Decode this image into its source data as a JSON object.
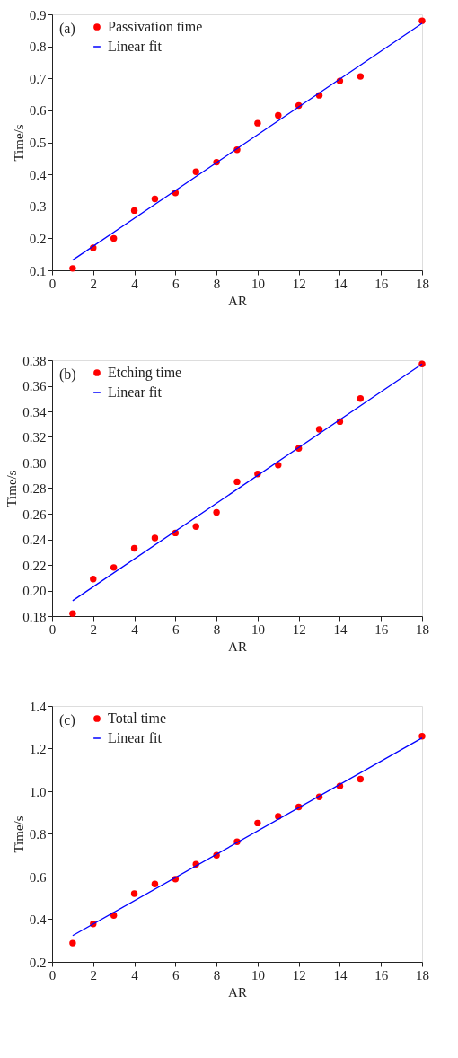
{
  "chart_data": [
    {
      "type": "scatter",
      "xlabel": "AR",
      "ylabel": "Time/s",
      "annotations": [
        "(a)"
      ],
      "legend": "top left",
      "grid": false,
      "xlim": [
        0,
        18
      ],
      "xticks": [
        0,
        2,
        4,
        6,
        8,
        10,
        12,
        14,
        16,
        18
      ],
      "ylim": [
        0.1,
        0.9
      ],
      "yticks": [
        0.1,
        0.2,
        0.3,
        0.4,
        0.5,
        0.6,
        0.7,
        0.8,
        0.9
      ],
      "series": [
        {
          "name": "Passivation time",
          "type": "scatter",
          "marker": "circle",
          "color": "#ff0000",
          "x": [
            1,
            2,
            3,
            4,
            5,
            6,
            7,
            8,
            9,
            10,
            11,
            12,
            13,
            14,
            15,
            18
          ],
          "values": [
            0.106,
            0.17,
            0.2,
            0.287,
            0.323,
            0.342,
            0.408,
            0.438,
            0.477,
            0.56,
            0.584,
            0.615,
            0.647,
            0.692,
            0.706,
            0.88
          ]
        },
        {
          "name": "Linear fit",
          "type": "line",
          "marker": "none",
          "line_style": "solid",
          "color": "#0000ff",
          "x": [
            1,
            18
          ],
          "values": [
            0.132,
            0.872
          ]
        }
      ]
    },
    {
      "type": "scatter",
      "xlabel": "AR",
      "ylabel": "Time/s",
      "annotations": [
        "(b)"
      ],
      "legend": "top left",
      "grid": false,
      "xlim": [
        0,
        18
      ],
      "xticks": [
        0,
        2,
        4,
        6,
        8,
        10,
        12,
        14,
        16,
        18
      ],
      "ylim": [
        0.18,
        0.38
      ],
      "yticks": [
        0.18,
        {
          "value": 0.2,
          "label": "0.20"
        },
        0.22,
        0.24,
        0.26,
        0.28,
        {
          "value": 0.3,
          "label": "0.30"
        },
        0.32,
        0.34,
        0.36,
        0.38
      ],
      "series": [
        {
          "name": "Etching time",
          "type": "scatter",
          "marker": "circle",
          "color": "#ff0000",
          "x": [
            1,
            2,
            3,
            4,
            5,
            6,
            7,
            8,
            9,
            10,
            11,
            12,
            13,
            14,
            15,
            18
          ],
          "values": [
            0.182,
            0.209,
            0.218,
            0.233,
            0.241,
            0.245,
            0.25,
            0.261,
            0.285,
            0.291,
            0.298,
            0.311,
            0.326,
            0.332,
            0.35,
            0.377
          ]
        },
        {
          "name": "Linear fit",
          "type": "line",
          "marker": "none",
          "line_style": "solid",
          "color": "#0000ff",
          "x": [
            1,
            18
          ],
          "values": [
            0.192,
            0.377
          ]
        }
      ]
    },
    {
      "type": "scatter",
      "xlabel": "AR",
      "ylabel": "Time/s",
      "annotations": [
        "(c)"
      ],
      "legend": "top left",
      "grid": false,
      "xlim": [
        0,
        18
      ],
      "xticks": [
        0,
        2,
        4,
        6,
        8,
        10,
        12,
        14,
        16,
        18
      ],
      "ylim": [
        0.2,
        1.4
      ],
      "yticks": [
        0.2,
        0.4,
        0.6,
        0.8,
        {
          "value": 1,
          "label": "1.0"
        },
        1.2,
        1.4
      ],
      "series": [
        {
          "name": "Total time",
          "type": "scatter",
          "marker": "circle",
          "color": "#ff0000",
          "x": [
            1,
            2,
            3,
            4,
            5,
            6,
            7,
            8,
            9,
            10,
            11,
            12,
            13,
            14,
            15,
            18
          ],
          "values": [
            0.288,
            0.378,
            0.418,
            0.52,
            0.565,
            0.588,
            0.658,
            0.7,
            0.763,
            0.851,
            0.882,
            0.926,
            0.974,
            1.024,
            1.057,
            1.258
          ]
        },
        {
          "name": "Linear fit",
          "type": "line",
          "marker": "none",
          "line_style": "solid",
          "color": "#0000ff",
          "x": [
            1,
            18
          ],
          "values": [
            0.323,
            1.25
          ]
        }
      ]
    }
  ]
}
